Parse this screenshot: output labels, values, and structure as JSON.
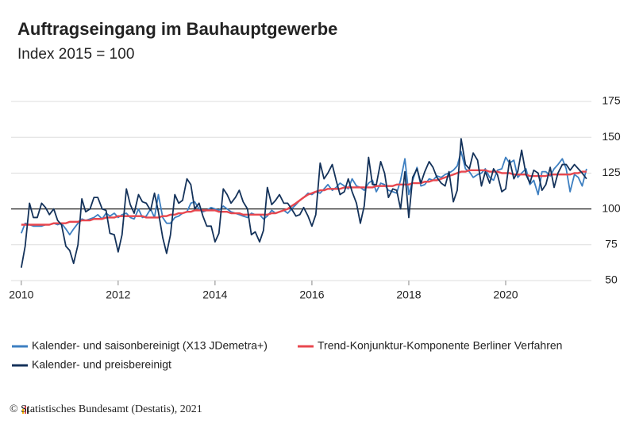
{
  "chart_data": {
    "type": "line",
    "title": "Auftragseingang im Bauhauptgewerbe",
    "subtitle": "Index 2015 = 100",
    "source": "© Statistisches Bundesamt (Destatis), 2021",
    "x": [
      2010,
      2010.08,
      2010.17,
      2010.25,
      2010.33,
      2010.42,
      2010.5,
      2010.58,
      2010.67,
      2010.75,
      2010.83,
      2010.92,
      2011,
      2011.08,
      2011.17,
      2011.25,
      2011.33,
      2011.42,
      2011.5,
      2011.58,
      2011.67,
      2011.75,
      2011.83,
      2011.92,
      2012,
      2012.08,
      2012.17,
      2012.25,
      2012.33,
      2012.42,
      2012.5,
      2012.58,
      2012.67,
      2012.75,
      2012.83,
      2012.92,
      2013,
      2013.08,
      2013.17,
      2013.25,
      2013.33,
      2013.42,
      2013.5,
      2013.58,
      2013.67,
      2013.75,
      2013.83,
      2013.92,
      2014,
      2014.08,
      2014.17,
      2014.25,
      2014.33,
      2014.42,
      2014.5,
      2014.58,
      2014.67,
      2014.75,
      2014.83,
      2014.92,
      2015,
      2015.08,
      2015.17,
      2015.25,
      2015.33,
      2015.42,
      2015.5,
      2015.58,
      2015.67,
      2015.75,
      2015.83,
      2015.92,
      2016,
      2016.08,
      2016.17,
      2016.25,
      2016.33,
      2016.42,
      2016.5,
      2016.58,
      2016.67,
      2016.75,
      2016.83,
      2016.92,
      2017,
      2017.08,
      2017.17,
      2017.25,
      2017.33,
      2017.42,
      2017.5,
      2017.58,
      2017.67,
      2017.75,
      2017.83,
      2017.92,
      2018,
      2018.08,
      2018.17,
      2018.25,
      2018.33,
      2018.42,
      2018.5,
      2018.58,
      2018.67,
      2018.75,
      2018.83,
      2018.92,
      2019,
      2019.08,
      2019.17,
      2019.25,
      2019.33,
      2019.42,
      2019.5,
      2019.58,
      2019.67,
      2019.75,
      2019.83,
      2019.92,
      2020,
      2020.08,
      2020.17,
      2020.25,
      2020.33,
      2020.42,
      2020.5,
      2020.58,
      2020.67,
      2020.75,
      2020.83,
      2020.92,
      2021,
      2021.08,
      2021.17,
      2021.25,
      2021.33,
      2021.42,
      2021.5,
      2021.58,
      2021.67
    ],
    "series": [
      {
        "name": "Kalender- und saisonbereinigt (X13 JDemetra+)",
        "color": "#3d7fc1",
        "values": [
          83,
          90,
          89,
          88,
          88,
          88,
          89,
          89,
          90,
          89,
          90,
          86,
          82,
          86,
          90,
          93,
          92,
          93,
          94,
          96,
          93,
          97,
          95,
          97,
          94,
          96,
          97,
          94,
          93,
          100,
          94,
          95,
          100,
          94,
          110,
          94,
          90,
          90,
          94,
          95,
          97,
          98,
          104,
          105,
          100,
          98,
          99,
          101,
          100,
          99,
          102,
          100,
          98,
          97,
          96,
          95,
          94,
          97,
          96,
          96,
          93,
          95,
          99,
          97,
          98,
          99,
          97,
          100,
          103,
          106,
          108,
          111,
          110,
          112,
          111,
          114,
          117,
          113,
          115,
          118,
          116,
          114,
          121,
          116,
          115,
          113,
          118,
          120,
          112,
          118,
          117,
          113,
          112,
          111,
          120,
          135,
          110,
          120,
          129,
          116,
          117,
          121,
          120,
          123,
          122,
          124,
          125,
          127,
          130,
          140,
          128,
          126,
          122,
          124,
          125,
          128,
          122,
          120,
          127,
          128,
          136,
          132,
          134,
          122,
          125,
          128,
          117,
          120,
          110,
          126,
          126,
          123,
          128,
          131,
          135,
          128,
          112,
          124,
          122,
          116,
          128
        ]
      },
      {
        "name": "Trend-Konjunktur-Komponente Berliner Verfahren",
        "color": "#e8474f",
        "values": [
          89,
          89,
          89,
          89,
          89,
          89,
          89,
          89,
          90,
          90,
          90,
          90,
          91,
          91,
          91,
          92,
          92,
          92,
          93,
          93,
          93,
          94,
          94,
          94,
          95,
          95,
          95,
          95,
          95,
          95,
          95,
          94,
          94,
          94,
          94,
          95,
          95,
          96,
          96,
          97,
          97,
          98,
          98,
          99,
          99,
          99,
          99,
          99,
          99,
          98,
          98,
          98,
          97,
          97,
          97,
          96,
          96,
          96,
          96,
          96,
          96,
          96,
          97,
          97,
          98,
          99,
          100,
          102,
          104,
          106,
          108,
          110,
          111,
          112,
          113,
          113,
          114,
          114,
          114,
          114,
          115,
          115,
          115,
          115,
          115,
          115,
          115,
          115,
          116,
          116,
          116,
          116,
          116,
          117,
          117,
          117,
          117,
          118,
          118,
          118,
          119,
          119,
          120,
          120,
          121,
          122,
          123,
          124,
          125,
          126,
          126,
          127,
          127,
          127,
          127,
          127,
          126,
          126,
          126,
          125,
          125,
          125,
          124,
          124,
          124,
          124,
          123,
          123,
          123,
          123,
          123,
          124,
          124,
          124,
          124,
          124,
          124,
          125,
          125,
          126,
          126
        ]
      },
      {
        "name": "Kalender- und preisbereinigt",
        "color": "#14325a",
        "values": [
          59,
          74,
          104,
          94,
          94,
          104,
          101,
          96,
          100,
          92,
          89,
          74,
          71,
          62,
          75,
          107,
          98,
          100,
          108,
          108,
          100,
          99,
          83,
          82,
          70,
          82,
          114,
          103,
          97,
          110,
          105,
          104,
          99,
          111,
          98,
          80,
          69,
          82,
          110,
          104,
          106,
          121,
          117,
          100,
          104,
          95,
          88,
          88,
          77,
          83,
          114,
          110,
          104,
          108,
          113,
          105,
          100,
          82,
          84,
          77,
          85,
          115,
          103,
          106,
          110,
          104,
          104,
          100,
          95,
          96,
          101,
          95,
          88,
          96,
          132,
          121,
          125,
          131,
          120,
          110,
          112,
          121,
          112,
          104,
          90,
          102,
          136,
          117,
          117,
          133,
          125,
          108,
          114,
          113,
          100,
          126,
          94,
          122,
          128,
          118,
          126,
          133,
          129,
          122,
          118,
          116,
          126,
          105,
          113,
          149,
          131,
          128,
          139,
          134,
          116,
          126,
          118,
          128,
          124,
          112,
          114,
          134,
          121,
          126,
          141,
          124,
          118,
          127,
          125,
          113,
          117,
          129,
          115,
          125,
          131,
          131,
          127,
          131,
          128,
          125,
          121
        ]
      }
    ],
    "xlim": [
      2009.79,
      2021.77
    ],
    "xticks": [
      2010,
      2012,
      2014,
      2016,
      2018,
      2020
    ],
    "ylim": [
      50,
      175
    ],
    "yticks": [
      50,
      75,
      100,
      125,
      150,
      175
    ],
    "hline": 100,
    "grid": true
  }
}
